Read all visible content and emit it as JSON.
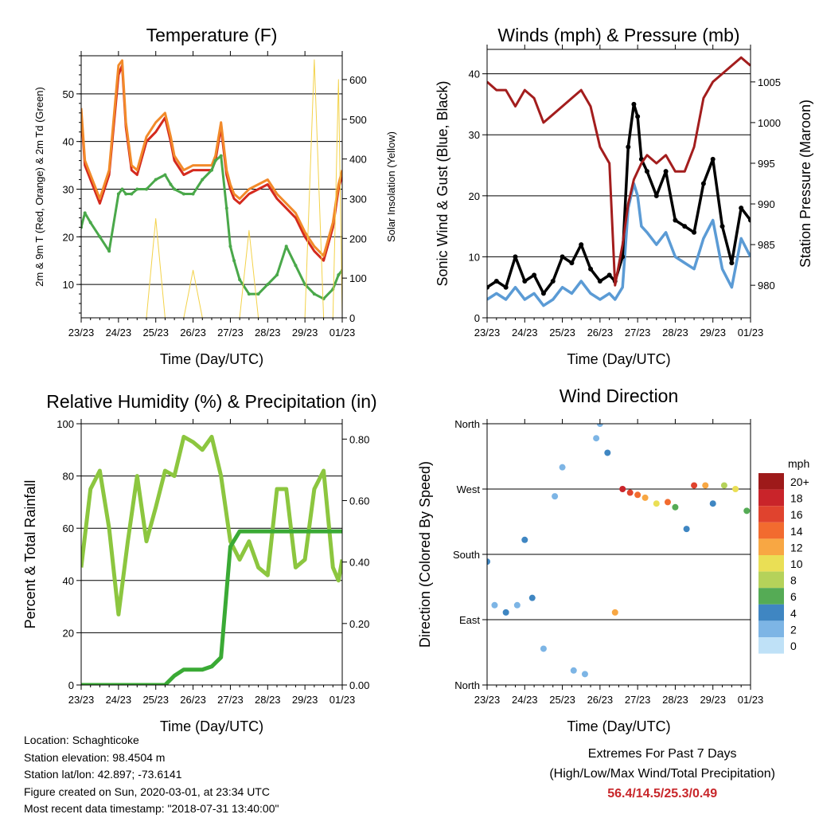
{
  "chart_data": [
    {
      "type": "line",
      "title": "Temperature (F)",
      "xlabel": "Time (Day/UTC)",
      "ylabel": "2m & 9m T (Red, Orange) & 2m Td (Green)",
      "ylabel_right": "Solar Insolation (Yellow)",
      "x_ticks": [
        "23/23",
        "24/23",
        "25/23",
        "26/23",
        "27/23",
        "28/23",
        "29/23",
        "01/23"
      ],
      "ylim": [
        3,
        58
      ],
      "y_ticks": [
        10,
        20,
        30,
        40,
        50
      ],
      "ylim_right": [
        0,
        660
      ],
      "y_ticks_right": [
        0,
        100,
        200,
        300,
        400,
        500,
        600
      ],
      "grid": true,
      "x": [
        0,
        0.1,
        0.25,
        0.5,
        0.75,
        1.0,
        1.1,
        1.2,
        1.35,
        1.5,
        1.75,
        2.0,
        2.25,
        2.4,
        2.5,
        2.75,
        3.0,
        3.25,
        3.5,
        3.6,
        3.75,
        3.9,
        4.0,
        4.1,
        4.25,
        4.5,
        4.75,
        5.0,
        5.25,
        5.5,
        5.75,
        6.0,
        6.25,
        6.5,
        6.75,
        6.9,
        7.0
      ],
      "series": [
        {
          "color": "#d42a1e",
          "values": [
            46,
            35,
            32,
            27,
            33,
            54,
            56,
            43,
            34,
            33,
            40,
            42,
            45,
            40,
            36,
            33,
            34,
            34,
            34,
            36,
            43,
            33,
            30,
            28,
            27,
            29,
            30,
            31,
            28,
            26,
            24,
            20,
            17,
            15,
            22,
            30,
            33
          ]
        },
        {
          "color": "#f28a2a",
          "values": [
            47,
            36,
            33,
            28,
            34,
            56,
            57,
            44,
            35,
            34,
            41,
            44,
            46,
            41,
            37,
            34,
            35,
            35,
            35,
            37,
            44,
            34,
            31,
            29,
            28,
            30,
            31,
            32,
            29,
            27,
            25,
            21,
            18,
            16,
            23,
            31,
            34
          ]
        },
        {
          "color": "#4aa84a",
          "values": [
            22,
            25,
            23,
            20,
            17,
            29,
            30,
            29,
            29,
            30,
            30,
            32,
            33,
            31,
            30,
            29,
            29,
            32,
            34,
            36,
            37,
            26,
            18,
            15,
            11,
            8,
            8,
            10,
            12,
            18,
            14,
            10,
            8,
            7,
            9,
            12,
            13
          ]
        },
        {
          "color": "#f3d24a",
          "values": [
            0,
            0,
            0,
            0,
            0,
            0,
            0,
            0,
            0,
            0,
            0,
            250,
            0,
            0,
            0,
            0,
            120,
            0,
            0,
            0,
            0,
            0,
            0,
            0,
            0,
            220,
            0,
            0,
            0,
            0,
            0,
            0,
            650,
            0,
            0,
            600,
            0
          ]
        }
      ]
    },
    {
      "type": "line",
      "title": "Winds (mph) & Pressure (mb)",
      "xlabel": "Time (Day/UTC)",
      "ylabel": "Sonic Wind & Gust (Blue, Black)",
      "ylabel_right": "Station Pressure (Maroon)",
      "x_ticks": [
        "23/23",
        "24/23",
        "25/23",
        "26/23",
        "27/23",
        "28/23",
        "29/23",
        "01/23"
      ],
      "ylim": [
        0,
        44
      ],
      "y_ticks": [
        0,
        10,
        20,
        30,
        40
      ],
      "ylim_right": [
        976,
        1009
      ],
      "y_ticks_right": [
        980,
        985,
        990,
        995,
        1000,
        1005
      ],
      "grid": true,
      "x": [
        0,
        0.25,
        0.5,
        0.75,
        1.0,
        1.25,
        1.5,
        1.75,
        2.0,
        2.25,
        2.5,
        2.75,
        3.0,
        3.25,
        3.4,
        3.6,
        3.75,
        3.9,
        4.0,
        4.1,
        4.25,
        4.5,
        4.75,
        5.0,
        5.25,
        5.5,
        5.75,
        6.0,
        6.25,
        6.5,
        6.75,
        7.0
      ],
      "series": [
        {
          "color": "#5b9bd5",
          "values": [
            3,
            4,
            3,
            5,
            3,
            4,
            2,
            3,
            5,
            4,
            6,
            4,
            3,
            4,
            3,
            5,
            18,
            22,
            20,
            15,
            14,
            12,
            14,
            10,
            9,
            8,
            13,
            16,
            8,
            5,
            13,
            10
          ]
        },
        {
          "color": "#000000",
          "values": [
            5,
            6,
            5,
            10,
            6,
            7,
            4,
            6,
            10,
            9,
            12,
            8,
            6,
            7,
            6,
            10,
            28,
            35,
            33,
            26,
            24,
            20,
            24,
            16,
            15,
            14,
            22,
            26,
            15,
            9,
            18,
            16
          ]
        },
        {
          "color": "#a31d1d",
          "values": [
            1005,
            1004,
            1004,
            1002,
            1004,
            1003,
            1000,
            1001,
            1002,
            1003,
            1004,
            1002,
            997,
            995,
            980,
            985,
            990,
            993,
            994,
            995,
            996,
            995,
            996,
            994,
            994,
            997,
            1003,
            1005,
            1006,
            1007,
            1008,
            1007
          ]
        }
      ]
    },
    {
      "type": "line",
      "title": "Relative Humidity (%) & Precipitation (in)",
      "xlabel": "Time (Day/UTC)",
      "ylabel": "Percent & Total Rainfall",
      "x_ticks": [
        "23/23",
        "24/23",
        "25/23",
        "26/23",
        "27/23",
        "28/23",
        "29/23",
        "01/23"
      ],
      "ylim": [
        0,
        100
      ],
      "y_ticks": [
        0,
        20,
        40,
        60,
        80,
        100
      ],
      "ylim_right": [
        0,
        0.85
      ],
      "y_ticks_right": [
        "0.00",
        "0.20",
        "0.40",
        "0.60",
        "0.80"
      ],
      "grid": true,
      "x": [
        0,
        0.25,
        0.5,
        0.75,
        1.0,
        1.25,
        1.5,
        1.75,
        2.0,
        2.25,
        2.5,
        2.75,
        3.0,
        3.25,
        3.5,
        3.75,
        4.0,
        4.25,
        4.5,
        4.75,
        5.0,
        5.25,
        5.5,
        5.75,
        6.0,
        6.25,
        6.5,
        6.75,
        6.9,
        7.0
      ],
      "series": [
        {
          "color": "#8cc63f",
          "values": [
            45,
            75,
            82,
            60,
            27,
            55,
            80,
            55,
            68,
            82,
            80,
            95,
            93,
            90,
            95,
            80,
            55,
            48,
            55,
            45,
            42,
            75,
            75,
            45,
            48,
            75,
            82,
            45,
            40,
            48
          ]
        },
        {
          "color": "#3aaa35",
          "values": [
            0,
            0,
            0,
            0,
            0,
            0,
            0,
            0,
            0,
            0,
            0.03,
            0.05,
            0.05,
            0.05,
            0.06,
            0.09,
            0.45,
            0.5,
            0.5,
            0.5,
            0.5,
            0.5,
            0.5,
            0.5,
            0.5,
            0.5,
            0.5,
            0.5,
            0.5,
            0.5
          ]
        }
      ]
    },
    {
      "type": "scatter",
      "title": "Wind Direction",
      "xlabel": "Time (Day/UTC)",
      "ylabel": "Direction (Colored By Speed)",
      "x_ticks": [
        "23/23",
        "24/23",
        "25/23",
        "26/23",
        "27/23",
        "28/23",
        "29/23",
        "01/23"
      ],
      "ylim": [
        0,
        360
      ],
      "y_ticks": [
        "North",
        "East",
        "South",
        "West",
        "North"
      ],
      "grid": true,
      "colorbar": {
        "unit": "mph",
        "labels": [
          "20+",
          "18",
          "16",
          "14",
          "12",
          "10",
          "8",
          "6",
          "4",
          "2",
          "0"
        ],
        "colors": [
          "#9e1a1a",
          "#c9242a",
          "#e0432e",
          "#f26b2f",
          "#f8a743",
          "#eadf55",
          "#b5d25a",
          "#55ab55",
          "#3f86c2",
          "#7db5e5",
          "#bfe1f7"
        ]
      },
      "x": [
        0,
        0.2,
        0.5,
        0.8,
        1.0,
        1.2,
        1.5,
        1.8,
        2.0,
        2.3,
        2.6,
        2.9,
        3.0,
        3.2,
        3.4,
        3.6,
        3.8,
        4.0,
        4.2,
        4.5,
        4.8,
        5.0,
        5.3,
        5.5,
        5.8,
        6.0,
        6.3,
        6.6,
        6.9
      ],
      "directions": [
        170,
        110,
        100,
        110,
        200,
        120,
        50,
        260,
        300,
        20,
        15,
        340,
        360,
        320,
        100,
        270,
        265,
        262,
        258,
        250,
        252,
        245,
        215,
        275,
        275,
        250,
        275,
        270,
        240
      ],
      "speeds": [
        3,
        2,
        3,
        2,
        4,
        3,
        2,
        1,
        2,
        1,
        2,
        2,
        1,
        4,
        12,
        18,
        16,
        14,
        12,
        10,
        14,
        6,
        3,
        16,
        12,
        4,
        8,
        10,
        6
      ]
    }
  ],
  "info": {
    "location": "Location: Schaghticoke",
    "elevation": "Station elevation: 98.4504 m",
    "latlon": "Station lat/lon: 42.897; -73.6141",
    "created": "Figure created on Sun, 2020-03-01, at 23:34 UTC",
    "timestamp": "Most recent data timestamp: \"2018-07-31 13:40:00\""
  },
  "extremes": {
    "line1": "Extremes For Past 7 Days",
    "line2": "(High/Low/Max Wind/Total Precipitation)",
    "values": "56.4/14.5/25.3/0.49"
  }
}
